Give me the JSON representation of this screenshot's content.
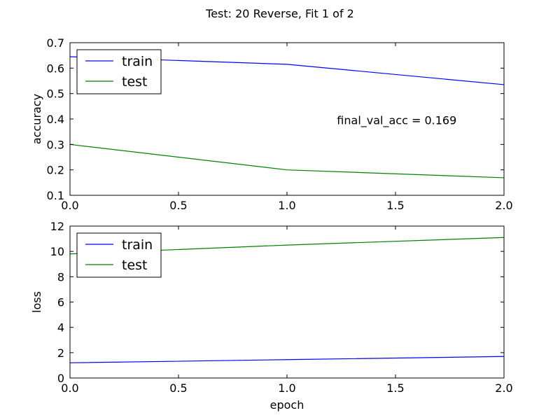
{
  "figure": {
    "suptitle": "Test: 20 Reverse, Fit 1 of 2"
  },
  "chart_data": [
    {
      "type": "line",
      "xlabel": "",
      "ylabel": "accuracy",
      "xlim": [
        0.0,
        2.0
      ],
      "ylim": [
        0.1,
        0.7
      ],
      "xticks": [
        0.0,
        0.5,
        1.0,
        1.5,
        2.0
      ],
      "xtick_labels": [
        "0.0",
        "0.5",
        "1.0",
        "1.5",
        "2.0"
      ],
      "yticks": [
        0.1,
        0.2,
        0.3,
        0.4,
        0.5,
        0.6,
        0.7
      ],
      "ytick_labels": [
        "0.1",
        "0.2",
        "0.3",
        "0.4",
        "0.5",
        "0.6",
        "0.7"
      ],
      "x": [
        0,
        1,
        2
      ],
      "series": [
        {
          "name": "train",
          "color": "#0000ff",
          "values": [
            0.645,
            0.615,
            0.535
          ]
        },
        {
          "name": "test",
          "color": "#008000",
          "values": [
            0.3,
            0.2,
            0.169
          ]
        }
      ],
      "legend": "upper left",
      "grid": false,
      "annotation": {
        "text": "final_val_acc = 0.169",
        "x": 1.23,
        "y": 0.38
      }
    },
    {
      "type": "line",
      "xlabel": "epoch",
      "ylabel": "loss",
      "xlim": [
        0.0,
        2.0
      ],
      "ylim": [
        0,
        12
      ],
      "xticks": [
        0.0,
        0.5,
        1.0,
        1.5,
        2.0
      ],
      "xtick_labels": [
        "0.0",
        "0.5",
        "1.0",
        "1.5",
        "2.0"
      ],
      "yticks": [
        0,
        2,
        4,
        6,
        8,
        10,
        12
      ],
      "ytick_labels": [
        "0",
        "2",
        "4",
        "6",
        "8",
        "10",
        "12"
      ],
      "x": [
        0,
        1,
        2
      ],
      "series": [
        {
          "name": "train",
          "color": "#0000ff",
          "values": [
            1.2,
            1.45,
            1.7
          ]
        },
        {
          "name": "test",
          "color": "#008000",
          "values": [
            9.8,
            10.5,
            11.1
          ]
        }
      ],
      "legend": "upper left",
      "grid": false
    }
  ]
}
